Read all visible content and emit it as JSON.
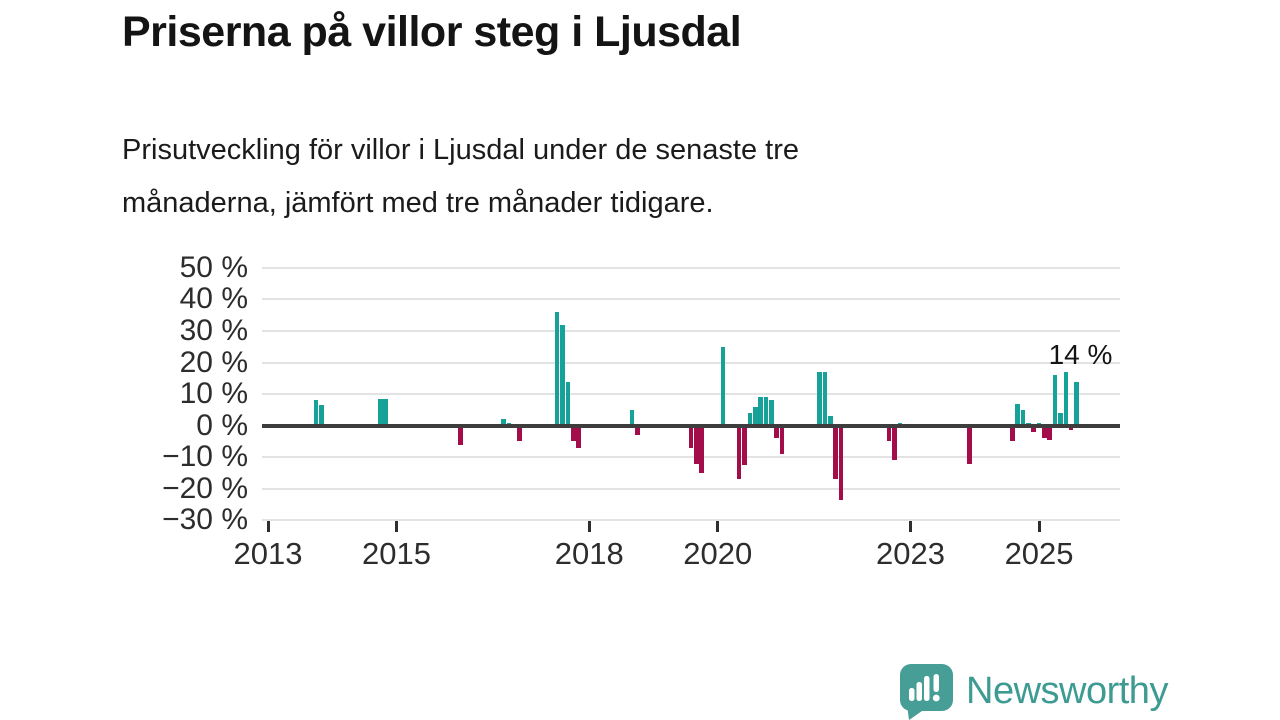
{
  "title": "Priserna på villor steg i Ljusdal",
  "subtitle_lines": [
    "Prisutveckling för villor i Ljusdal under de senaste tre",
    "månaderna, jämfört med tre månader tidigare."
  ],
  "logo": {
    "text": "Newsworthy"
  },
  "colors": {
    "positive": "#16a298",
    "negative": "#a30d4a",
    "axis": "#3d3d3d",
    "grid": "#e3e3e3",
    "logo": "#469e96"
  },
  "chart_data": {
    "type": "bar",
    "unit": "%",
    "x_start": "2013-01",
    "ylim": [
      -30,
      50
    ],
    "grid": true,
    "x": [
      "2013-10",
      "2013-11",
      "2014-10",
      "2014-11",
      "2016-01",
      "2016-09",
      "2016-10",
      "2016-12",
      "2017-07",
      "2017-08",
      "2017-09",
      "2017-10",
      "2017-11",
      "2018-09",
      "2018-10",
      "2019-08",
      "2019-09",
      "2019-10",
      "2020-02",
      "2020-05",
      "2020-06",
      "2020-07",
      "2020-08",
      "2020-09",
      "2020-10",
      "2020-11",
      "2020-12",
      "2021-01",
      "2021-08",
      "2021-09",
      "2021-10",
      "2021-11",
      "2021-12",
      "2022-09",
      "2022-10",
      "2022-11",
      "2023-12",
      "2024-08",
      "2024-09",
      "2024-10",
      "2024-11",
      "2024-12",
      "2025-01",
      "2025-02",
      "2025-03",
      "2025-04",
      "2025-05",
      "2025-06",
      "2025-07",
      "2025-08"
    ],
    "values": [
      8,
      6.5,
      8.5,
      8.5,
      -6,
      2,
      1,
      -5,
      36,
      32,
      14,
      -5,
      -7,
      5,
      -3,
      -7,
      -12,
      -15,
      25,
      -17,
      -12.5,
      4,
      6,
      9,
      9,
      8,
      -4,
      -9,
      17,
      17,
      3,
      -17,
      -23.5,
      -5,
      -11,
      1,
      -12,
      -5,
      7,
      5,
      1,
      -2,
      1,
      -4,
      -4.5,
      16,
      4,
      17,
      -1.5,
      14
    ],
    "yticks": [
      {
        "value": 50,
        "label": "50 %"
      },
      {
        "value": 40,
        "label": "40 %"
      },
      {
        "value": 30,
        "label": "30 %"
      },
      {
        "value": 20,
        "label": "20 %"
      },
      {
        "value": 10,
        "label": "10 %"
      },
      {
        "value": 0,
        "label": "0 %"
      },
      {
        "value": -10,
        "label": "−10 %"
      },
      {
        "value": -20,
        "label": "−20 %"
      },
      {
        "value": -30,
        "label": "−30 %"
      }
    ],
    "xticks": [
      {
        "label": "2013",
        "month": 0
      },
      {
        "label": "2015",
        "month": 24
      },
      {
        "label": "2018",
        "month": 60
      },
      {
        "label": "2020",
        "month": 84
      },
      {
        "label": "2023",
        "month": 120
      },
      {
        "label": "2025",
        "month": 144
      }
    ],
    "annotation": {
      "text": "14 %",
      "x": "2025-08"
    }
  }
}
